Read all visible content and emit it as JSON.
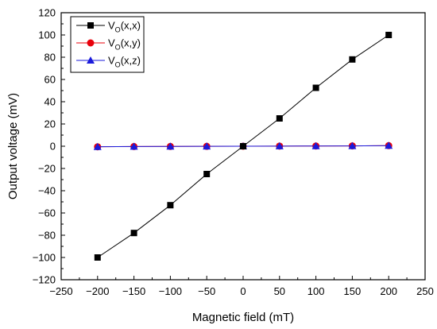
{
  "chart_data": {
    "type": "line",
    "xlabel": "Magnetic field (mT)",
    "ylabel": "Output voltage (mV)",
    "xlim": [
      -250,
      250
    ],
    "ylim": [
      -120,
      120
    ],
    "xticks": [
      -250,
      -200,
      -150,
      -100,
      -50,
      0,
      50,
      100,
      150,
      200,
      250
    ],
    "yticks": [
      -120,
      -100,
      -80,
      -60,
      -40,
      -20,
      0,
      20,
      40,
      60,
      80,
      100,
      120
    ],
    "xtick_labels": [
      "−250",
      "−200",
      "−150",
      "−100",
      "−50",
      "0",
      "50",
      "100",
      "150",
      "200",
      "250"
    ],
    "ytick_labels": [
      "−120",
      "−100",
      "−80",
      "−60",
      "−40",
      "−20",
      "0",
      "20",
      "40",
      "60",
      "80",
      "100",
      "120"
    ],
    "grid": false,
    "legend_position": "top-left",
    "x": [
      -200,
      -150,
      -100,
      -50,
      0,
      50,
      100,
      150,
      200
    ],
    "series": [
      {
        "name_main": "V",
        "name_sub": "O",
        "name_rest": "(x,x)",
        "color": "#000000",
        "marker": "square",
        "values": [
          -100,
          -78,
          -53,
          -25,
          0,
          25,
          52.5,
          78,
          100
        ]
      },
      {
        "name_main": "V",
        "name_sub": "O",
        "name_rest": "(x,y)",
        "color": "#e8000b",
        "marker": "circle",
        "values": [
          -0.5,
          -0.3,
          -0.2,
          -0.1,
          0,
          0.1,
          0.2,
          0.3,
          0.5
        ]
      },
      {
        "name_main": "V",
        "name_sub": "O",
        "name_rest": "(x,z)",
        "color": "#1a1adb",
        "marker": "triangle",
        "values": [
          -0.5,
          -0.3,
          -0.2,
          -0.1,
          0,
          0.1,
          0.2,
          0.3,
          0.5
        ]
      }
    ]
  }
}
